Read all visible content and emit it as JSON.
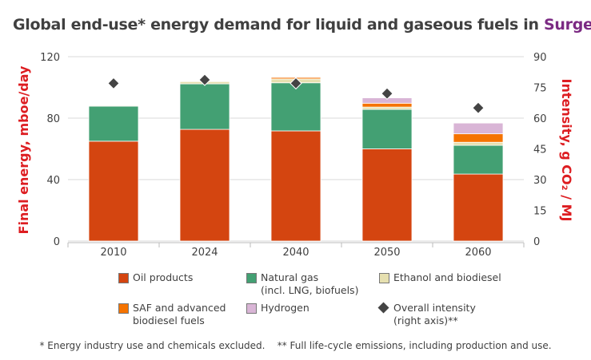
{
  "title": {
    "main": "Global end-use* energy demand for liquid and gaseous fuels in ",
    "highlight": "Surge"
  },
  "footnote": "* Energy industry use and chemicals excluded.    ** Full life-cycle emissions, including production and use.",
  "chart_data": {
    "type": "bar",
    "stacked": true,
    "title": "Global end-use* energy demand for liquid and gaseous fuels in Surge",
    "categories": [
      "2010",
      "2024",
      "2040",
      "2050",
      "2060"
    ],
    "ylabel": "Final energy, mboe/day",
    "ylim": [
      0,
      120
    ],
    "yticks": [
      0,
      40,
      80,
      120
    ],
    "y2label": "Intensity, g CO₂ / MJ",
    "y2lim": [
      0,
      90
    ],
    "y2ticks": [
      0,
      15,
      30,
      45,
      60,
      75,
      90
    ],
    "grid": true,
    "legend_position": "bottom",
    "series": [
      {
        "name": "Oil products",
        "color": "#d44510",
        "values": [
          65,
          72.7,
          71.7,
          60,
          43.6
        ]
      },
      {
        "name": "Natural gas\n(incl. LNG, biofuels)",
        "color": "#43a073",
        "values": [
          22.8,
          29.6,
          31.3,
          25.7,
          18.7
        ]
      },
      {
        "name": "Ethanol and biodiesel",
        "color": "#e6e0b0",
        "values": [
          0.5,
          1.5,
          2.5,
          1.5,
          2
        ]
      },
      {
        "name": "SAF and advanced\nbiodiesel fuels",
        "color": "#f57300",
        "values": [
          0,
          0.2,
          1,
          2.5,
          5.5
        ]
      },
      {
        "name": "Hydrogen",
        "color": "#d9b5d6",
        "values": [
          0,
          0,
          0.5,
          3.5,
          7
        ]
      }
    ],
    "line_series": {
      "name": "Overall intensity\n(right axis)**",
      "color": "#444444",
      "marker": "diamond",
      "values": [
        77,
        78.7,
        77,
        72,
        65
      ]
    }
  }
}
